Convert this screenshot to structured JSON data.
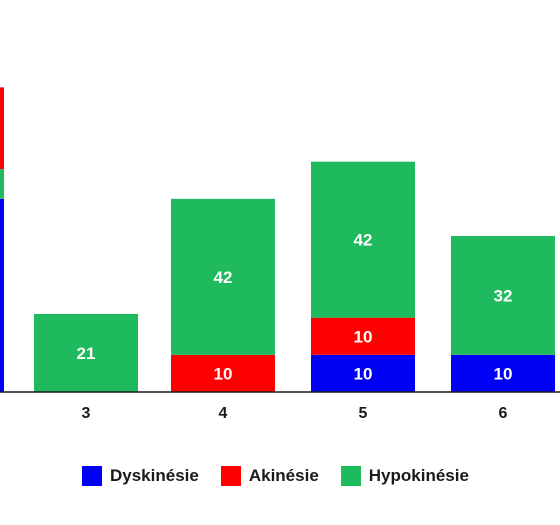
{
  "chart_data": {
    "type": "bar",
    "stacked": true,
    "categories": [
      "3",
      "4",
      "5",
      "6"
    ],
    "series": [
      {
        "name": "Dyskinésie",
        "color": "#0000f5",
        "values": [
          0,
          0,
          10,
          10
        ]
      },
      {
        "name": "Akinésie",
        "color": "#ff0000",
        "values": [
          0,
          10,
          10,
          0
        ]
      },
      {
        "name": "Hypokinésie",
        "color": "#1fba5e",
        "values": [
          21,
          42,
          42,
          32
        ]
      }
    ],
    "partial_left_bar": {
      "Dyskinésie": 52,
      "Hypokinésie": 8,
      "Akinésie": 22
    },
    "ylim": [
      0,
      84
    ],
    "grid": false,
    "legend_position": "bottom"
  }
}
